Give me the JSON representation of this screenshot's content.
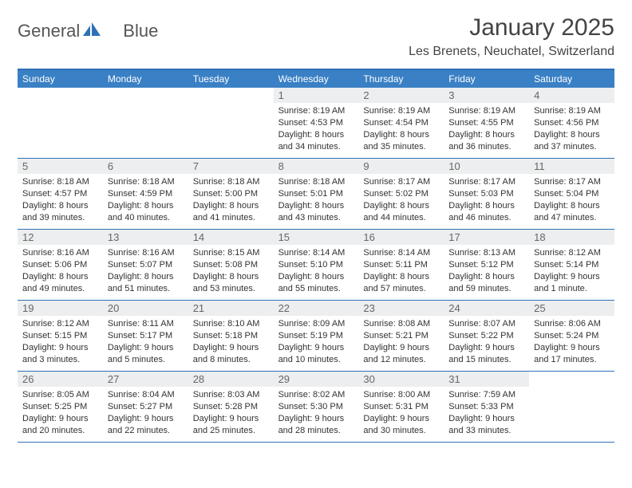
{
  "brand": {
    "word1": "General",
    "word2": "Blue"
  },
  "title": "January 2025",
  "location": "Les Brenets, Neuchatel, Switzerland",
  "colors": {
    "header_bg": "#3a80c5",
    "border": "#2f71b8",
    "daynum_bg": "#eceeef",
    "text": "#333333",
    "title_text": "#444444"
  },
  "daysOfWeek": [
    "Sunday",
    "Monday",
    "Tuesday",
    "Wednesday",
    "Thursday",
    "Friday",
    "Saturday"
  ],
  "weeks": [
    [
      {
        "n": "",
        "sunrise": "",
        "sunset": "",
        "daylight": ""
      },
      {
        "n": "",
        "sunrise": "",
        "sunset": "",
        "daylight": ""
      },
      {
        "n": "",
        "sunrise": "",
        "sunset": "",
        "daylight": ""
      },
      {
        "n": "1",
        "sunrise": "Sunrise: 8:19 AM",
        "sunset": "Sunset: 4:53 PM",
        "daylight": "Daylight: 8 hours and 34 minutes."
      },
      {
        "n": "2",
        "sunrise": "Sunrise: 8:19 AM",
        "sunset": "Sunset: 4:54 PM",
        "daylight": "Daylight: 8 hours and 35 minutes."
      },
      {
        "n": "3",
        "sunrise": "Sunrise: 8:19 AM",
        "sunset": "Sunset: 4:55 PM",
        "daylight": "Daylight: 8 hours and 36 minutes."
      },
      {
        "n": "4",
        "sunrise": "Sunrise: 8:19 AM",
        "sunset": "Sunset: 4:56 PM",
        "daylight": "Daylight: 8 hours and 37 minutes."
      }
    ],
    [
      {
        "n": "5",
        "sunrise": "Sunrise: 8:18 AM",
        "sunset": "Sunset: 4:57 PM",
        "daylight": "Daylight: 8 hours and 39 minutes."
      },
      {
        "n": "6",
        "sunrise": "Sunrise: 8:18 AM",
        "sunset": "Sunset: 4:59 PM",
        "daylight": "Daylight: 8 hours and 40 minutes."
      },
      {
        "n": "7",
        "sunrise": "Sunrise: 8:18 AM",
        "sunset": "Sunset: 5:00 PM",
        "daylight": "Daylight: 8 hours and 41 minutes."
      },
      {
        "n": "8",
        "sunrise": "Sunrise: 8:18 AM",
        "sunset": "Sunset: 5:01 PM",
        "daylight": "Daylight: 8 hours and 43 minutes."
      },
      {
        "n": "9",
        "sunrise": "Sunrise: 8:17 AM",
        "sunset": "Sunset: 5:02 PM",
        "daylight": "Daylight: 8 hours and 44 minutes."
      },
      {
        "n": "10",
        "sunrise": "Sunrise: 8:17 AM",
        "sunset": "Sunset: 5:03 PM",
        "daylight": "Daylight: 8 hours and 46 minutes."
      },
      {
        "n": "11",
        "sunrise": "Sunrise: 8:17 AM",
        "sunset": "Sunset: 5:04 PM",
        "daylight": "Daylight: 8 hours and 47 minutes."
      }
    ],
    [
      {
        "n": "12",
        "sunrise": "Sunrise: 8:16 AM",
        "sunset": "Sunset: 5:06 PM",
        "daylight": "Daylight: 8 hours and 49 minutes."
      },
      {
        "n": "13",
        "sunrise": "Sunrise: 8:16 AM",
        "sunset": "Sunset: 5:07 PM",
        "daylight": "Daylight: 8 hours and 51 minutes."
      },
      {
        "n": "14",
        "sunrise": "Sunrise: 8:15 AM",
        "sunset": "Sunset: 5:08 PM",
        "daylight": "Daylight: 8 hours and 53 minutes."
      },
      {
        "n": "15",
        "sunrise": "Sunrise: 8:14 AM",
        "sunset": "Sunset: 5:10 PM",
        "daylight": "Daylight: 8 hours and 55 minutes."
      },
      {
        "n": "16",
        "sunrise": "Sunrise: 8:14 AM",
        "sunset": "Sunset: 5:11 PM",
        "daylight": "Daylight: 8 hours and 57 minutes."
      },
      {
        "n": "17",
        "sunrise": "Sunrise: 8:13 AM",
        "sunset": "Sunset: 5:12 PM",
        "daylight": "Daylight: 8 hours and 59 minutes."
      },
      {
        "n": "18",
        "sunrise": "Sunrise: 8:12 AM",
        "sunset": "Sunset: 5:14 PM",
        "daylight": "Daylight: 9 hours and 1 minute."
      }
    ],
    [
      {
        "n": "19",
        "sunrise": "Sunrise: 8:12 AM",
        "sunset": "Sunset: 5:15 PM",
        "daylight": "Daylight: 9 hours and 3 minutes."
      },
      {
        "n": "20",
        "sunrise": "Sunrise: 8:11 AM",
        "sunset": "Sunset: 5:17 PM",
        "daylight": "Daylight: 9 hours and 5 minutes."
      },
      {
        "n": "21",
        "sunrise": "Sunrise: 8:10 AM",
        "sunset": "Sunset: 5:18 PM",
        "daylight": "Daylight: 9 hours and 8 minutes."
      },
      {
        "n": "22",
        "sunrise": "Sunrise: 8:09 AM",
        "sunset": "Sunset: 5:19 PM",
        "daylight": "Daylight: 9 hours and 10 minutes."
      },
      {
        "n": "23",
        "sunrise": "Sunrise: 8:08 AM",
        "sunset": "Sunset: 5:21 PM",
        "daylight": "Daylight: 9 hours and 12 minutes."
      },
      {
        "n": "24",
        "sunrise": "Sunrise: 8:07 AM",
        "sunset": "Sunset: 5:22 PM",
        "daylight": "Daylight: 9 hours and 15 minutes."
      },
      {
        "n": "25",
        "sunrise": "Sunrise: 8:06 AM",
        "sunset": "Sunset: 5:24 PM",
        "daylight": "Daylight: 9 hours and 17 minutes."
      }
    ],
    [
      {
        "n": "26",
        "sunrise": "Sunrise: 8:05 AM",
        "sunset": "Sunset: 5:25 PM",
        "daylight": "Daylight: 9 hours and 20 minutes."
      },
      {
        "n": "27",
        "sunrise": "Sunrise: 8:04 AM",
        "sunset": "Sunset: 5:27 PM",
        "daylight": "Daylight: 9 hours and 22 minutes."
      },
      {
        "n": "28",
        "sunrise": "Sunrise: 8:03 AM",
        "sunset": "Sunset: 5:28 PM",
        "daylight": "Daylight: 9 hours and 25 minutes."
      },
      {
        "n": "29",
        "sunrise": "Sunrise: 8:02 AM",
        "sunset": "Sunset: 5:30 PM",
        "daylight": "Daylight: 9 hours and 28 minutes."
      },
      {
        "n": "30",
        "sunrise": "Sunrise: 8:00 AM",
        "sunset": "Sunset: 5:31 PM",
        "daylight": "Daylight: 9 hours and 30 minutes."
      },
      {
        "n": "31",
        "sunrise": "Sunrise: 7:59 AM",
        "sunset": "Sunset: 5:33 PM",
        "daylight": "Daylight: 9 hours and 33 minutes."
      },
      {
        "n": "",
        "sunrise": "",
        "sunset": "",
        "daylight": ""
      }
    ]
  ]
}
